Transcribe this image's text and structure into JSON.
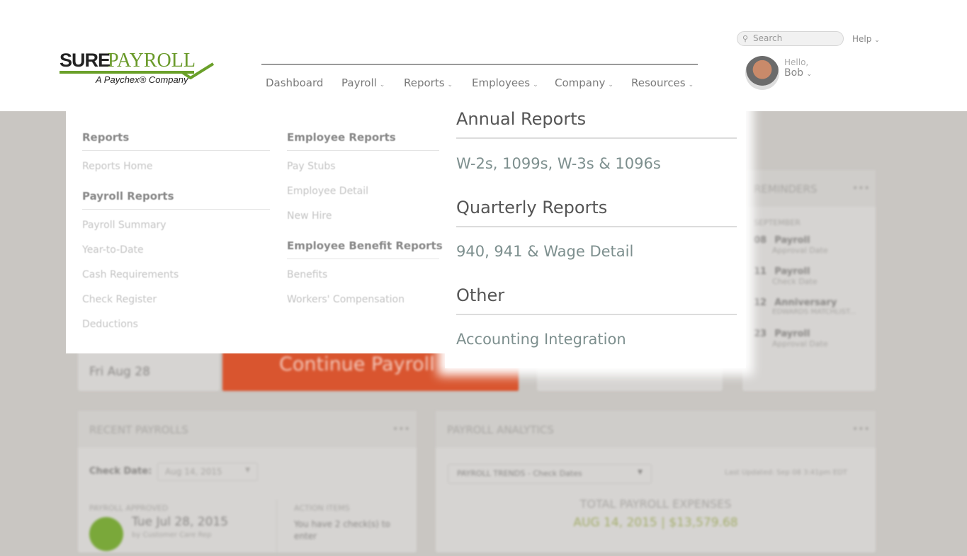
{
  "header": {
    "logo": {
      "sure": "SURE",
      "payroll": "PAYROLL",
      "tagline": "A Paychex® Company"
    },
    "nav": [
      {
        "label": "Dashboard",
        "dropdown": false
      },
      {
        "label": "Payroll",
        "dropdown": true
      },
      {
        "label": "Reports",
        "dropdown": true
      },
      {
        "label": "Employees",
        "dropdown": true
      },
      {
        "label": "Company",
        "dropdown": true
      },
      {
        "label": "Resources",
        "dropdown": true
      }
    ],
    "search_placeholder": "Search",
    "help": "Help",
    "greeting": "Hello,",
    "user": "Bob"
  },
  "reports_menu": {
    "col1": {
      "heading": "Reports",
      "items": [
        "Reports Home"
      ],
      "heading2": "Payroll Reports",
      "items2": [
        "Payroll Summary",
        "Year-to-Date",
        "Cash Requirements",
        "Check Register",
        "Deductions"
      ]
    },
    "col2": {
      "heading": "Employee Reports",
      "items": [
        "Pay Stubs",
        "Employee Detail",
        "New Hire"
      ],
      "heading2": "Employee Benefit Reports",
      "items2": [
        "Benefits",
        "Workers' Compensation"
      ]
    },
    "col3": [
      {
        "heading": "Annual Reports",
        "link": "W-2s, 1099s, W-3s & 1096s"
      },
      {
        "heading": "Quarterly Reports",
        "link": "940, 941 & Wage Detail"
      },
      {
        "heading": "Other",
        "link": "Accounting Integration"
      }
    ]
  },
  "dashboard": {
    "next_date": "Fri Aug 28",
    "continue_button": "Continue Payroll",
    "reminders": {
      "title": "REMINDERS",
      "month": "SEPTEMBER",
      "items": [
        {
          "day": "08",
          "title": "Payroll",
          "sub": "Approval Date"
        },
        {
          "day": "11",
          "title": "Payroll",
          "sub": "Check Date"
        },
        {
          "day": "12",
          "title": "Anniversary",
          "sub": "EDWARDS MATCHLIST..."
        },
        {
          "day": "23",
          "title": "Payroll",
          "sub": "Approval Date"
        }
      ]
    },
    "recent": {
      "title": "RECENT PAYROLLS",
      "check_date_label": "Check Date:",
      "check_date": "Aug 14, 2015",
      "approved_label": "PAYROLL APPROVED",
      "approved_date": "Tue Jul 28, 2015",
      "approved_by": "by Customer Care Rep",
      "action_label": "ACTION ITEMS",
      "action_text": "You have 2 check(s) to",
      "action_text2": "enter"
    },
    "analytics": {
      "title": "PAYROLL ANALYTICS",
      "select": "PAYROLL TRENDS - Check Dates",
      "updated": "Last Updated: Sep 08 3:41pm EDT",
      "total_label": "TOTAL PAYROLL EXPENSES",
      "total_value": "AUG 14, 2015 | $13,579.68"
    },
    "accent": "#d9552f",
    "brand_green": "#6aa02a"
  }
}
